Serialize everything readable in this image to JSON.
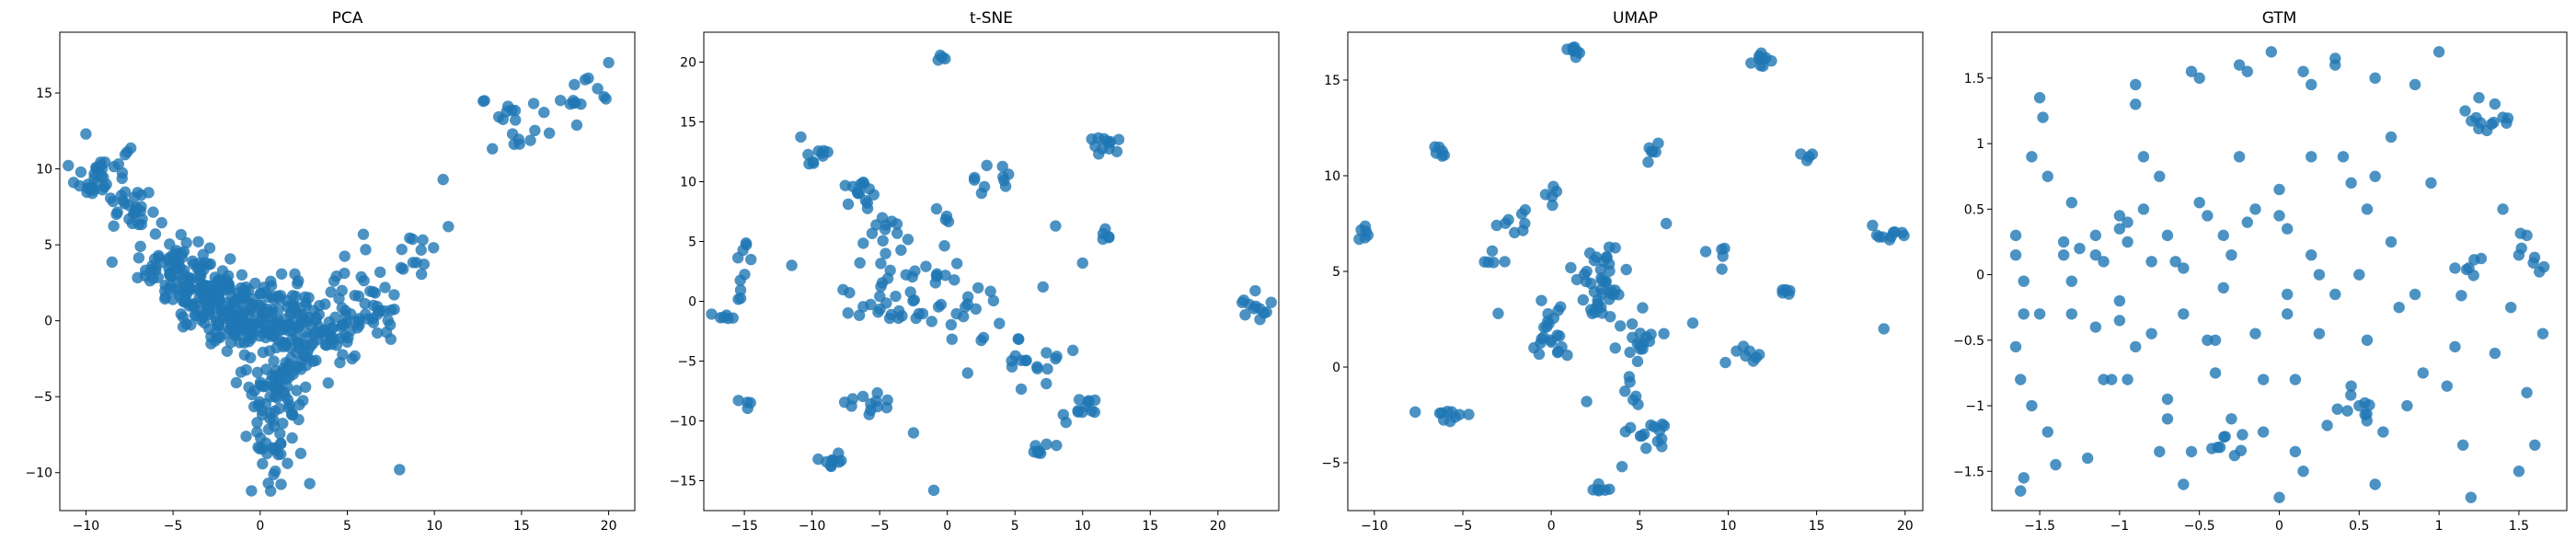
{
  "figure": {
    "chart_data": [
      {
        "type": "scatter",
        "title": "PCA",
        "xlim": [
          -11.5,
          21.5
        ],
        "ylim": [
          -12.5,
          19
        ],
        "xticks": [
          -10,
          -5,
          0,
          5,
          10,
          15,
          20
        ],
        "yticks": [
          -10,
          -5,
          0,
          5,
          10,
          15
        ],
        "color": "#1f77b4",
        "grid": false,
        "clusters": [
          {
            "x": -9.0,
            "y": 9.5,
            "sx": 0.8,
            "sy": 1.2,
            "n": 40
          },
          {
            "x": -7.0,
            "y": 7.0,
            "sx": 0.8,
            "sy": 1.0,
            "n": 25
          },
          {
            "x": -5.0,
            "y": 3.5,
            "sx": 1.0,
            "sy": 1.0,
            "n": 60
          },
          {
            "x": -3.0,
            "y": 1.5,
            "sx": 1.2,
            "sy": 1.0,
            "n": 90
          },
          {
            "x": -1.0,
            "y": 0.5,
            "sx": 1.3,
            "sy": 1.2,
            "n": 120
          },
          {
            "x": 1.5,
            "y": 0.0,
            "sx": 1.5,
            "sy": 1.2,
            "n": 80
          },
          {
            "x": 4.0,
            "y": -1.0,
            "sx": 1.3,
            "sy": 1.5,
            "n": 60
          },
          {
            "x": 1.0,
            "y": -4.0,
            "sx": 1.0,
            "sy": 1.5,
            "n": 70
          },
          {
            "x": 0.5,
            "y": -8.0,
            "sx": 0.8,
            "sy": 1.3,
            "n": 30
          },
          {
            "x": 6.5,
            "y": 1.5,
            "sx": 1.0,
            "sy": 1.5,
            "n": 30
          },
          {
            "x": 8.5,
            "y": 4.5,
            "sx": 0.7,
            "sy": 1.0,
            "n": 12
          },
          {
            "x": 15.0,
            "y": 13.0,
            "sx": 1.2,
            "sy": 1.0,
            "n": 20
          },
          {
            "x": 18.5,
            "y": 15.0,
            "sx": 0.8,
            "sy": 0.8,
            "n": 12
          }
        ],
        "points": [
          [
            -10.0,
            12.3
          ],
          [
            20.0,
            17.0
          ],
          [
            10.5,
            9.3
          ],
          [
            10.8,
            6.2
          ],
          [
            -0.5,
            -11.2
          ],
          [
            8.0,
            -9.8
          ]
        ]
      },
      {
        "type": "scatter",
        "title": "t-SNE",
        "xlim": [
          -18,
          24.5
        ],
        "ylim": [
          -17.5,
          22.5
        ],
        "xticks": [
          -15,
          -10,
          -5,
          0,
          5,
          10,
          15,
          20
        ],
        "yticks": [
          -15,
          -10,
          -5,
          0,
          5,
          10,
          15,
          20
        ],
        "color": "#1f77b4",
        "grid": false,
        "clusters": [
          {
            "x": -0.5,
            "y": 20.0,
            "sx": 0.15,
            "sy": 0.3,
            "n": 4
          },
          {
            "x": -9.5,
            "y": 12.3,
            "sx": 0.6,
            "sy": 0.5,
            "n": 10
          },
          {
            "x": 11.5,
            "y": 13.0,
            "sx": 0.7,
            "sy": 0.6,
            "n": 12
          },
          {
            "x": -6.5,
            "y": 9.0,
            "sx": 0.8,
            "sy": 0.6,
            "n": 14
          },
          {
            "x": 3.5,
            "y": 10.0,
            "sx": 0.8,
            "sy": 0.7,
            "n": 10
          },
          {
            "x": -4.0,
            "y": 5.5,
            "sx": 0.8,
            "sy": 0.8,
            "n": 12
          },
          {
            "x": -3.5,
            "y": 0.5,
            "sx": 2.0,
            "sy": 1.5,
            "n": 40
          },
          {
            "x": 2.5,
            "y": 0.0,
            "sx": 2.0,
            "sy": 2.0,
            "n": 20
          },
          {
            "x": -15.0,
            "y": 2.5,
            "sx": 0.3,
            "sy": 1.5,
            "n": 10
          },
          {
            "x": -16.5,
            "y": -1.3,
            "sx": 0.4,
            "sy": 0.3,
            "n": 6
          },
          {
            "x": 22.5,
            "y": -0.5,
            "sx": 0.6,
            "sy": 0.6,
            "n": 12
          },
          {
            "x": 6.5,
            "y": -5.0,
            "sx": 1.2,
            "sy": 1.0,
            "n": 16
          },
          {
            "x": 10.0,
            "y": -9.0,
            "sx": 0.8,
            "sy": 0.6,
            "n": 12
          },
          {
            "x": -6.0,
            "y": -8.5,
            "sx": 1.0,
            "sy": 0.6,
            "n": 12
          },
          {
            "x": -8.5,
            "y": -13.5,
            "sx": 0.6,
            "sy": 0.4,
            "n": 10
          },
          {
            "x": 7.0,
            "y": -12.5,
            "sx": 0.6,
            "sy": 0.6,
            "n": 8
          },
          {
            "x": 11.5,
            "y": 5.5,
            "sx": 0.3,
            "sy": 0.3,
            "n": 4
          },
          {
            "x": -14.8,
            "y": -8.5,
            "sx": 0.3,
            "sy": 0.2,
            "n": 4
          },
          {
            "x": 0.0,
            "y": 7.0,
            "sx": 0.4,
            "sy": 0.4,
            "n": 4
          }
        ],
        "points": [
          [
            -1.0,
            -15.8
          ],
          [
            11.5,
            5.2
          ],
          [
            -11.5,
            3.0
          ],
          [
            -2.5,
            -11.0
          ],
          [
            1.5,
            -6.0
          ],
          [
            8.0,
            6.3
          ],
          [
            10.0,
            3.2
          ]
        ]
      },
      {
        "type": "scatter",
        "title": "UMAP",
        "xlim": [
          -11.5,
          21
        ],
        "ylim": [
          -7.5,
          17.5
        ],
        "xticks": [
          -10,
          -5,
          0,
          5,
          10,
          15,
          20
        ],
        "yticks": [
          -5,
          0,
          5,
          10,
          15
        ],
        "color": "#1f77b4",
        "grid": false,
        "clusters": [
          {
            "x": 1.3,
            "y": 16.4,
            "sx": 0.2,
            "sy": 0.2,
            "n": 8
          },
          {
            "x": 12.0,
            "y": 16.0,
            "sx": 0.2,
            "sy": 0.3,
            "n": 10
          },
          {
            "x": -10.5,
            "y": 7.0,
            "sx": 0.2,
            "sy": 0.2,
            "n": 6
          },
          {
            "x": -6.2,
            "y": 11.2,
            "sx": 0.2,
            "sy": 0.2,
            "n": 6
          },
          {
            "x": 5.8,
            "y": 11.0,
            "sx": 0.2,
            "sy": 0.3,
            "n": 6
          },
          {
            "x": 14.5,
            "y": 11.0,
            "sx": 0.15,
            "sy": 0.15,
            "n": 4
          },
          {
            "x": 19.0,
            "y": 7.0,
            "sx": 0.6,
            "sy": 0.2,
            "n": 10
          },
          {
            "x": -2.0,
            "y": 7.3,
            "sx": 0.4,
            "sy": 0.4,
            "n": 8
          },
          {
            "x": 0.0,
            "y": 9.0,
            "sx": 0.3,
            "sy": 0.3,
            "n": 5
          },
          {
            "x": 2.5,
            "y": 4.0,
            "sx": 1.0,
            "sy": 1.2,
            "n": 45
          },
          {
            "x": 0.0,
            "y": 1.5,
            "sx": 0.6,
            "sy": 0.8,
            "n": 20
          },
          {
            "x": 5.0,
            "y": 1.5,
            "sx": 0.6,
            "sy": 0.8,
            "n": 16
          },
          {
            "x": -6.0,
            "y": -2.5,
            "sx": 0.5,
            "sy": 0.2,
            "n": 10
          },
          {
            "x": 5.5,
            "y": -3.5,
            "sx": 0.8,
            "sy": 0.3,
            "n": 14
          },
          {
            "x": 2.5,
            "y": -6.5,
            "sx": 0.3,
            "sy": 0.2,
            "n": 6
          },
          {
            "x": 11.0,
            "y": 0.5,
            "sx": 0.5,
            "sy": 0.3,
            "n": 8
          },
          {
            "x": 13.3,
            "y": 4.0,
            "sx": 0.2,
            "sy": 0.3,
            "n": 5
          },
          {
            "x": -3.5,
            "y": 5.5,
            "sx": 0.3,
            "sy": 0.3,
            "n": 5
          },
          {
            "x": 9.5,
            "y": 6.0,
            "sx": 0.3,
            "sy": 0.5,
            "n": 5
          },
          {
            "x": 4.5,
            "y": -1.5,
            "sx": 0.3,
            "sy": 0.5,
            "n": 6
          }
        ],
        "points": [
          [
            18.8,
            2.0
          ],
          [
            -3.0,
            2.8
          ],
          [
            8.0,
            2.3
          ],
          [
            2.0,
            -1.8
          ],
          [
            6.5,
            7.5
          ],
          [
            4.0,
            -5.2
          ]
        ]
      },
      {
        "type": "scatter",
        "title": "GTM",
        "xlim": [
          -1.8,
          1.8
        ],
        "ylim": [
          -1.8,
          1.85
        ],
        "xticks": [
          -1.5,
          -1.0,
          -0.5,
          0.0,
          0.5,
          1.0,
          1.5
        ],
        "yticks": [
          -1.5,
          -1.0,
          -0.5,
          0.0,
          0.5,
          1.0,
          1.5
        ],
        "color": "#1f77b4",
        "grid": false,
        "clusters": [],
        "points": [
          [
            -1.5,
            1.35
          ],
          [
            -1.48,
            1.2
          ],
          [
            -1.45,
            0.75
          ],
          [
            -1.55,
            0.9
          ],
          [
            -1.65,
            0.3
          ],
          [
            -1.65,
            0.15
          ],
          [
            -1.6,
            -0.05
          ],
          [
            -1.5,
            -0.3
          ],
          [
            -1.6,
            -0.3
          ],
          [
            -1.65,
            -0.55
          ],
          [
            -1.62,
            -0.8
          ],
          [
            -1.55,
            -1.0
          ],
          [
            -1.6,
            -1.55
          ],
          [
            -1.62,
            -1.65
          ],
          [
            -1.4,
            -1.45
          ],
          [
            -1.35,
            0.25
          ],
          [
            -1.35,
            0.15
          ],
          [
            -1.3,
            -0.05
          ],
          [
            -1.3,
            -0.3
          ],
          [
            -1.25,
            0.2
          ],
          [
            -1.15,
            0.3
          ],
          [
            -1.15,
            0.15
          ],
          [
            -1.1,
            0.1
          ],
          [
            -1.15,
            -0.4
          ],
          [
            -1.1,
            -0.8
          ],
          [
            -1.05,
            -0.8
          ],
          [
            -1.0,
            0.45
          ],
          [
            -1.0,
            0.35
          ],
          [
            -0.95,
            0.4
          ],
          [
            -0.95,
            0.25
          ],
          [
            -1.0,
            -0.2
          ],
          [
            -1.0,
            -0.35
          ],
          [
            -0.95,
            -0.8
          ],
          [
            -0.9,
            -0.55
          ],
          [
            -0.9,
            1.45
          ],
          [
            -0.9,
            1.3
          ],
          [
            -0.85,
            0.5
          ],
          [
            -0.85,
            0.9
          ],
          [
            -0.8,
            0.1
          ],
          [
            -0.8,
            -0.45
          ],
          [
            -0.75,
            -1.35
          ],
          [
            -0.7,
            -1.1
          ],
          [
            -0.7,
            0.3
          ],
          [
            -0.65,
            0.1
          ],
          [
            -0.6,
            0.05
          ],
          [
            -0.6,
            -0.3
          ],
          [
            -0.55,
            1.55
          ],
          [
            -0.5,
            1.5
          ],
          [
            -0.5,
            0.55
          ],
          [
            -0.45,
            0.45
          ],
          [
            -0.45,
            -0.5
          ],
          [
            -0.4,
            -0.5
          ],
          [
            -0.4,
            -0.75
          ],
          [
            -0.35,
            0.3
          ],
          [
            -0.3,
            0.15
          ],
          [
            -0.3,
            -1.1
          ],
          [
            -0.25,
            1.6
          ],
          [
            -0.2,
            1.55
          ],
          [
            -0.2,
            0.4
          ],
          [
            -0.15,
            0.5
          ],
          [
            -0.15,
            -0.45
          ],
          [
            -0.1,
            -0.8
          ],
          [
            -0.05,
            1.7
          ],
          [
            0.0,
            0.65
          ],
          [
            0.0,
            0.45
          ],
          [
            0.05,
            0.35
          ],
          [
            0.05,
            -0.15
          ],
          [
            0.05,
            -0.3
          ],
          [
            0.1,
            -0.8
          ],
          [
            0.1,
            -1.35
          ],
          [
            0.15,
            1.55
          ],
          [
            0.2,
            1.45
          ],
          [
            0.2,
            0.15
          ],
          [
            0.25,
            0.0
          ],
          [
            0.25,
            -0.45
          ],
          [
            0.3,
            -1.15
          ],
          [
            0.35,
            1.65
          ],
          [
            0.35,
            1.6
          ],
          [
            0.4,
            0.9
          ],
          [
            0.45,
            0.7
          ],
          [
            0.45,
            -0.85
          ],
          [
            0.5,
            -1.0
          ],
          [
            0.55,
            0.5
          ],
          [
            0.55,
            -0.5
          ],
          [
            0.6,
            0.75
          ],
          [
            0.65,
            -1.2
          ],
          [
            0.7,
            0.25
          ],
          [
            0.75,
            -0.25
          ],
          [
            0.8,
            -1.0
          ],
          [
            0.85,
            1.45
          ],
          [
            0.9,
            -0.75
          ],
          [
            0.95,
            0.7
          ],
          [
            1.0,
            1.7
          ],
          [
            1.05,
            -0.85
          ],
          [
            1.1,
            -0.55
          ],
          [
            1.15,
            -1.3
          ],
          [
            1.25,
            1.35
          ],
          [
            1.3,
            1.1
          ],
          [
            1.35,
            -0.6
          ],
          [
            1.4,
            0.5
          ],
          [
            1.45,
            -0.25
          ],
          [
            1.5,
            -1.5
          ],
          [
            1.55,
            0.3
          ],
          [
            1.6,
            -1.3
          ],
          [
            1.65,
            -0.45
          ],
          [
            -1.2,
            -1.4
          ],
          [
            -0.6,
            -1.6
          ],
          [
            0.0,
            -1.7
          ],
          [
            0.6,
            -1.6
          ],
          [
            1.2,
            -1.7
          ],
          [
            -1.3,
            0.55
          ],
          [
            -0.75,
            0.75
          ],
          [
            -0.25,
            0.9
          ],
          [
            0.2,
            0.9
          ],
          [
            -0.35,
            -0.1
          ],
          [
            0.35,
            -0.15
          ],
          [
            -0.55,
            -1.35
          ],
          [
            0.15,
            -1.5
          ],
          [
            1.4,
            1.2
          ],
          [
            1.5,
            0.15
          ],
          [
            -1.45,
            -1.2
          ],
          [
            0.7,
            1.05
          ],
          [
            -0.1,
            -1.2
          ],
          [
            0.85,
            -0.15
          ],
          [
            1.1,
            0.05
          ],
          [
            -0.7,
            -0.95
          ],
          [
            0.5,
            0.0
          ],
          [
            0.6,
            1.5
          ],
          [
            1.55,
            -0.9
          ]
        ],
        "extra_clusters": [
          {
            "x": 1.3,
            "y": 1.15,
            "sx": 0.08,
            "sy": 0.08,
            "n": 10
          },
          {
            "x": 1.55,
            "y": 0.2,
            "sx": 0.05,
            "sy": 0.1,
            "n": 6
          },
          {
            "x": 0.5,
            "y": -1.05,
            "sx": 0.06,
            "sy": 0.08,
            "n": 8
          },
          {
            "x": 1.2,
            "y": 0.05,
            "sx": 0.05,
            "sy": 0.1,
            "n": 6
          },
          {
            "x": -0.3,
            "y": -1.35,
            "sx": 0.1,
            "sy": 0.1,
            "n": 8
          }
        ]
      }
    ]
  }
}
